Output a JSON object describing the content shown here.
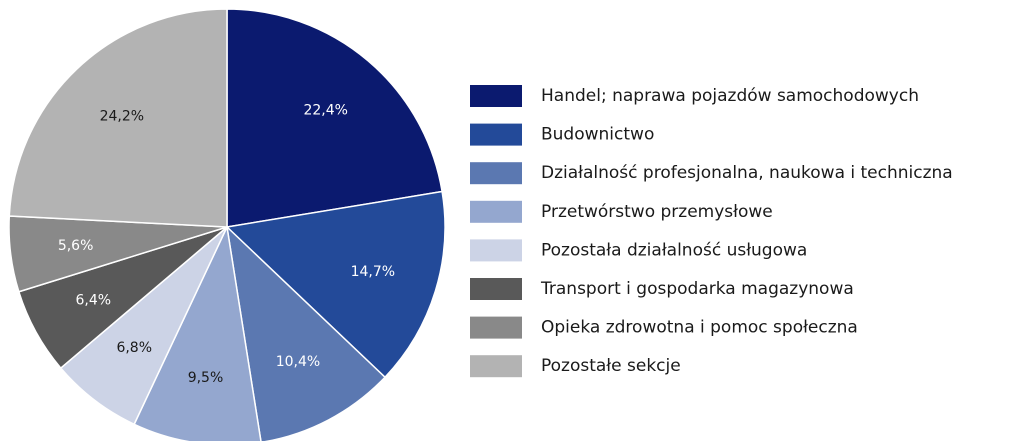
{
  "chart_data": {
    "type": "pie",
    "categories": [
      "Handel; naprawa pojazdów samochodowych",
      "Budownictwo",
      "Działalność profesjonalna, naukowa i techniczna",
      "Przetwórstwo przemysłowe",
      "Pozostała działalność usługowa",
      "Transport i gospodarka magazynowa",
      "Opieka zdrowotna i pomoc społeczna",
      "Pozostałe sekcje"
    ],
    "values": [
      22.4,
      14.7,
      10.4,
      9.5,
      6.8,
      6.4,
      5.6,
      24.2
    ],
    "value_labels": [
      "22,4%",
      "14,7%",
      "10,4%",
      "9,5%",
      "6,8%",
      "6,4%",
      "5,6%",
      "24,2%"
    ],
    "colors": [
      "#0b1a6f",
      "#234a99",
      "#5b78b1",
      "#94a7cf",
      "#ccd3e6",
      "#595959",
      "#898989",
      "#b3b3b3"
    ],
    "legend": "right"
  }
}
